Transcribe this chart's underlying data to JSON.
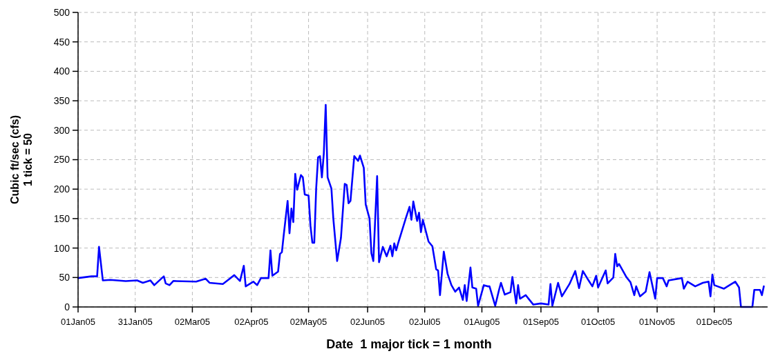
{
  "chart_data": {
    "type": "line",
    "xlabel": "Date  1 major tick = 1 month",
    "ylabel": "Cubic ft/sec (cfs)\n1 tick = 50",
    "xlim": [
      "2005-01-01",
      "2005-12-29"
    ],
    "xticks": [
      {
        "value": "2005-01-01",
        "label": "01Jan05"
      },
      {
        "value": "2005-01-31",
        "label": "31Jan05"
      },
      {
        "value": "2005-03-02",
        "label": "02Mar05"
      },
      {
        "value": "2005-04-02",
        "label": "02Apr05"
      },
      {
        "value": "2005-05-02",
        "label": "02May05"
      },
      {
        "value": "2005-06-02",
        "label": "02Jun05"
      },
      {
        "value": "2005-07-02",
        "label": "02Jul05"
      },
      {
        "value": "2005-08-01",
        "label": "01Aug05"
      },
      {
        "value": "2005-09-01",
        "label": "01Sep05"
      },
      {
        "value": "2005-10-01",
        "label": "01Oct05"
      },
      {
        "value": "2005-11-01",
        "label": "01Nov05"
      },
      {
        "value": "2005-12-01",
        "label": "01Dec05"
      }
    ],
    "ylim": [
      0,
      500
    ],
    "yticks": [
      0,
      50,
      100,
      150,
      200,
      250,
      300,
      350,
      400,
      450,
      500
    ],
    "grid": true,
    "x": [
      "2005-01-01",
      "2005-01-08",
      "2005-01-11",
      "2005-01-12",
      "2005-01-14",
      "2005-01-18",
      "2005-01-26",
      "2005-02-01",
      "2005-02-04",
      "2005-02-08",
      "2005-02-10",
      "2005-02-15",
      "2005-02-16",
      "2005-02-18",
      "2005-02-20",
      "2005-03-04",
      "2005-03-09",
      "2005-03-11",
      "2005-03-18",
      "2005-03-20",
      "2005-03-24",
      "2005-03-27",
      "2005-03-29",
      "2005-03-30",
      "2005-04-03",
      "2005-04-05",
      "2005-04-07",
      "2005-04-11",
      "2005-04-12",
      "2005-04-13",
      "2005-04-16",
      "2005-04-17",
      "2005-04-18",
      "2005-04-19",
      "2005-04-21",
      "2005-04-22",
      "2005-04-23",
      "2005-04-24",
      "2005-04-25",
      "2005-04-26",
      "2005-04-28",
      "2005-04-29",
      "2005-04-30",
      "2005-05-02",
      "2005-05-03",
      "2005-05-04",
      "2005-05-05",
      "2005-05-06",
      "2005-05-07",
      "2005-05-08",
      "2005-05-09",
      "2005-05-10",
      "2005-05-11",
      "2005-05-12",
      "2005-05-14",
      "2005-05-15",
      "2005-05-17",
      "2005-05-19",
      "2005-05-21",
      "2005-05-22",
      "2005-05-23",
      "2005-05-24",
      "2005-05-26",
      "2005-05-28",
      "2005-05-29",
      "2005-05-31",
      "2005-06-01",
      "2005-06-03",
      "2005-06-04",
      "2005-06-05",
      "2005-06-07",
      "2005-06-08",
      "2005-06-10",
      "2005-06-12",
      "2005-06-14",
      "2005-06-15",
      "2005-06-16",
      "2005-06-17",
      "2005-06-18",
      "2005-06-22",
      "2005-06-24",
      "2005-06-25",
      "2005-06-26",
      "2005-06-28",
      "2005-06-29",
      "2005-06-30",
      "2005-07-01",
      "2005-07-04",
      "2005-07-06",
      "2005-07-08",
      "2005-07-09",
      "2005-07-10",
      "2005-07-12",
      "2005-07-14",
      "2005-07-16",
      "2005-07-18",
      "2005-07-20",
      "2005-07-22",
      "2005-07-23",
      "2005-07-24",
      "2005-07-26",
      "2005-07-27",
      "2005-07-29",
      "2005-07-30",
      "2005-08-02",
      "2005-08-04",
      "2005-08-05",
      "2005-08-08",
      "2005-08-10",
      "2005-08-11",
      "2005-08-13",
      "2005-08-16",
      "2005-08-17",
      "2005-08-19",
      "2005-08-20",
      "2005-08-21",
      "2005-08-24",
      "2005-08-28",
      "2005-09-01",
      "2005-09-05",
      "2005-09-06",
      "2005-09-07",
      "2005-09-10",
      "2005-09-12",
      "2005-09-16",
      "2005-09-19",
      "2005-09-21",
      "2005-09-23",
      "2005-09-26",
      "2005-09-28",
      "2005-09-30",
      "2005-10-01",
      "2005-10-05",
      "2005-10-06",
      "2005-10-09",
      "2005-10-10",
      "2005-10-11",
      "2005-10-12",
      "2005-10-16",
      "2005-10-18",
      "2005-10-20",
      "2005-10-21",
      "2005-10-23",
      "2005-10-26",
      "2005-10-28",
      "2005-10-31",
      "2005-11-01",
      "2005-11-04",
      "2005-11-06",
      "2005-11-07",
      "2005-11-14",
      "2005-11-15",
      "2005-11-17",
      "2005-11-21",
      "2005-11-25",
      "2005-11-28",
      "2005-11-29",
      "2005-11-30",
      "2005-12-01",
      "2005-12-06",
      "2005-12-08",
      "2005-12-12",
      "2005-12-14",
      "2005-12-15",
      "2005-12-21",
      "2005-12-22",
      "2005-12-25",
      "2005-12-26",
      "2005-12-27"
    ],
    "series": [
      {
        "color": "#0000ff",
        "values": [
          49,
          52,
          52,
          102,
          45,
          46,
          44,
          45,
          41,
          45,
          37,
          52,
          40,
          37,
          44,
          43,
          48,
          41,
          39,
          44,
          54,
          44,
          70,
          35,
          43,
          37,
          49,
          49,
          96,
          53,
          60,
          90,
          93,
          123,
          180,
          125,
          167,
          144,
          226,
          199,
          224,
          220,
          191,
          189,
          138,
          109,
          109,
          201,
          254,
          256,
          220,
          260,
          343,
          220,
          201,
          150,
          78,
          117,
          209,
          207,
          176,
          180,
          256,
          248,
          257,
          236,
          174,
          150,
          91,
          78,
          222,
          76,
          102,
          86,
          104,
          86,
          108,
          96,
          108,
          150,
          170,
          148,
          179,
          146,
          160,
          127,
          148,
          111,
          103,
          64,
          62,
          20,
          94,
          56,
          37,
          26,
          33,
          12,
          37,
          10,
          67,
          33,
          31,
          2,
          37,
          35,
          35,
          2,
          29,
          41,
          21,
          25,
          51,
          6,
          37,
          14,
          20,
          4,
          6,
          4,
          39,
          2,
          41,
          18,
          39,
          61,
          32,
          61,
          45,
          35,
          53,
          33,
          62,
          40,
          50,
          90,
          69,
          73,
          50,
          42,
          20,
          35,
          18,
          26,
          59,
          14,
          49,
          49,
          35,
          45,
          49,
          31,
          43,
          35,
          41,
          43,
          18,
          55,
          37,
          31,
          35,
          43,
          33,
          0,
          0,
          29,
          29,
          20,
          35
        ]
      }
    ]
  }
}
